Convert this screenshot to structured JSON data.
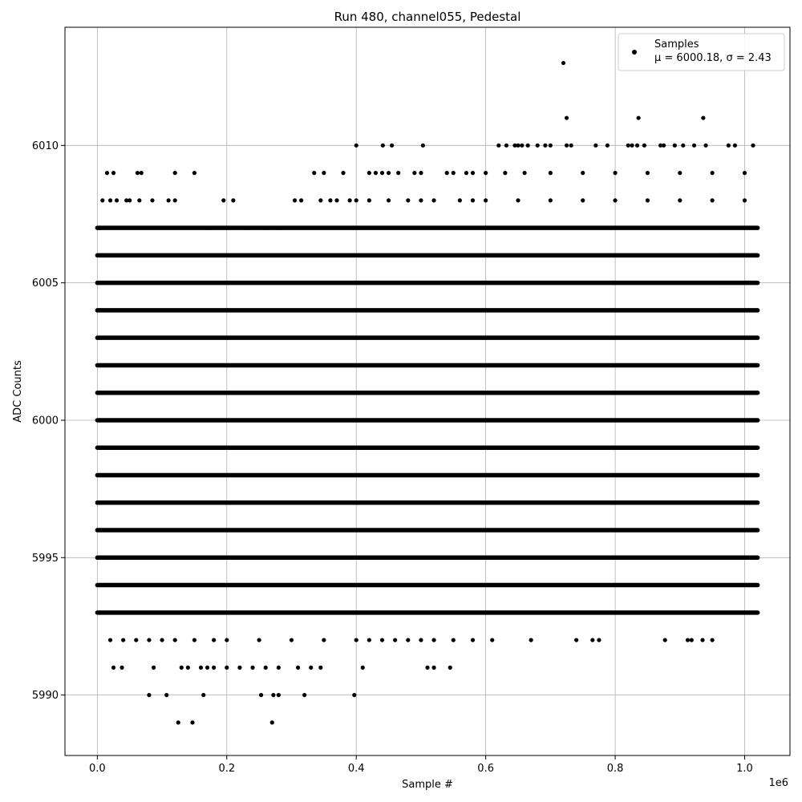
{
  "chart_data": {
    "type": "scatter",
    "title": "Run 480, channel055, Pedestal",
    "xlabel": "Sample #",
    "ylabel": "ADC Counts",
    "x_offset_label": "1e6",
    "xlim": [
      -0.05,
      1.07
    ],
    "ylim": [
      5987.8,
      6014.3
    ],
    "x_ticks": [
      0.0,
      0.2,
      0.4,
      0.6,
      0.8,
      1.0
    ],
    "x_tick_labels": [
      "0.0",
      "0.2",
      "0.4",
      "0.6",
      "0.8",
      "1.0"
    ],
    "y_ticks": [
      5990,
      5995,
      6000,
      6005,
      6010
    ],
    "y_tick_labels": [
      "5990",
      "5995",
      "6000",
      "6005",
      "6010"
    ],
    "grid": true,
    "legend_position": "top-right",
    "marker_color": "#000000",
    "series": [
      {
        "name": "Samples",
        "stats_label": "μ = 6000.18, σ = 2.43",
        "bands": [
          {
            "y": 6001,
            "x_range": [
              0.0,
              1.02
            ]
          },
          {
            "y": 6000,
            "x_range": [
              0.0,
              1.02
            ]
          },
          {
            "y": 5999,
            "x_range": [
              0.0,
              1.02
            ]
          },
          {
            "y": 6002,
            "x_range": [
              0.0,
              1.02
            ]
          },
          {
            "y": 5998,
            "x_range": [
              0.0,
              1.02
            ]
          },
          {
            "y": 6003,
            "x_range": [
              0.0,
              1.02
            ]
          },
          {
            "y": 5997,
            "x_range": [
              0.0,
              1.02
            ]
          },
          {
            "y": 6004,
            "x_range": [
              0.0,
              1.02
            ]
          },
          {
            "y": 5996,
            "x_range": [
              0.0,
              1.02
            ]
          },
          {
            "y": 6005,
            "x_range": [
              0.0,
              1.02
            ]
          },
          {
            "y": 5995,
            "x_range": [
              0.0,
              1.02
            ]
          },
          {
            "y": 6006,
            "x_range": [
              0.0,
              1.02
            ]
          },
          {
            "y": 5994,
            "x_range": [
              0.0,
              1.02
            ]
          },
          {
            "y": 6007,
            "x_range": [
              0.0,
              1.02
            ]
          },
          {
            "y": 5993,
            "x_range": [
              0.0,
              1.02
            ]
          }
        ],
        "points": [
          [
            0.72,
            6013
          ],
          [
            0.725,
            6011
          ],
          [
            0.836,
            6011
          ],
          [
            0.936,
            6011
          ],
          [
            0.4,
            6010
          ],
          [
            0.441,
            6010
          ],
          [
            0.455,
            6010
          ],
          [
            0.503,
            6010
          ],
          [
            0.62,
            6010
          ],
          [
            0.632,
            6010
          ],
          [
            0.645,
            6010
          ],
          [
            0.65,
            6010
          ],
          [
            0.656,
            6010
          ],
          [
            0.665,
            6010
          ],
          [
            0.68,
            6010
          ],
          [
            0.692,
            6010
          ],
          [
            0.7,
            6010
          ],
          [
            0.725,
            6010
          ],
          [
            0.732,
            6010
          ],
          [
            0.77,
            6010
          ],
          [
            0.788,
            6010
          ],
          [
            0.82,
            6010
          ],
          [
            0.826,
            6010
          ],
          [
            0.834,
            6010
          ],
          [
            0.845,
            6010
          ],
          [
            0.87,
            6010
          ],
          [
            0.875,
            6010
          ],
          [
            0.892,
            6010
          ],
          [
            0.905,
            6010
          ],
          [
            0.922,
            6010
          ],
          [
            0.94,
            6010
          ],
          [
            0.975,
            6010
          ],
          [
            0.985,
            6010
          ],
          [
            1.013,
            6010
          ],
          [
            0.015,
            6009
          ],
          [
            0.025,
            6009
          ],
          [
            0.062,
            6009
          ],
          [
            0.068,
            6009
          ],
          [
            0.12,
            6009
          ],
          [
            0.15,
            6009
          ],
          [
            0.335,
            6009
          ],
          [
            0.35,
            6009
          ],
          [
            0.38,
            6009
          ],
          [
            0.42,
            6009
          ],
          [
            0.43,
            6009
          ],
          [
            0.44,
            6009
          ],
          [
            0.45,
            6009
          ],
          [
            0.465,
            6009
          ],
          [
            0.49,
            6009
          ],
          [
            0.5,
            6009
          ],
          [
            0.54,
            6009
          ],
          [
            0.55,
            6009
          ],
          [
            0.57,
            6009
          ],
          [
            0.58,
            6009
          ],
          [
            0.6,
            6009
          ],
          [
            0.63,
            6009
          ],
          [
            0.66,
            6009
          ],
          [
            0.7,
            6009
          ],
          [
            0.75,
            6009
          ],
          [
            0.8,
            6009
          ],
          [
            0.85,
            6009
          ],
          [
            0.9,
            6009
          ],
          [
            0.95,
            6009
          ],
          [
            1.0,
            6009
          ],
          [
            0.008,
            6008
          ],
          [
            0.02,
            6008
          ],
          [
            0.03,
            6008
          ],
          [
            0.045,
            6008
          ],
          [
            0.05,
            6008
          ],
          [
            0.065,
            6008
          ],
          [
            0.085,
            6008
          ],
          [
            0.11,
            6008
          ],
          [
            0.12,
            6008
          ],
          [
            0.195,
            6008
          ],
          [
            0.21,
            6008
          ],
          [
            0.305,
            6008
          ],
          [
            0.315,
            6008
          ],
          [
            0.345,
            6008
          ],
          [
            0.36,
            6008
          ],
          [
            0.37,
            6008
          ],
          [
            0.39,
            6008
          ],
          [
            0.4,
            6008
          ],
          [
            0.42,
            6008
          ],
          [
            0.45,
            6008
          ],
          [
            0.48,
            6008
          ],
          [
            0.5,
            6008
          ],
          [
            0.52,
            6008
          ],
          [
            0.56,
            6008
          ],
          [
            0.58,
            6008
          ],
          [
            0.6,
            6008
          ],
          [
            0.65,
            6008
          ],
          [
            0.7,
            6008
          ],
          [
            0.75,
            6008
          ],
          [
            0.8,
            6008
          ],
          [
            0.85,
            6008
          ],
          [
            0.9,
            6008
          ],
          [
            0.95,
            6008
          ],
          [
            1.0,
            6008
          ],
          [
            0.175,
            6007
          ],
          [
            0.2,
            6007
          ],
          [
            0.23,
            6007
          ],
          [
            0.26,
            6007
          ],
          [
            0.28,
            6007
          ],
          [
            0.02,
            5992
          ],
          [
            0.04,
            5992
          ],
          [
            0.06,
            5992
          ],
          [
            0.08,
            5992
          ],
          [
            0.1,
            5992
          ],
          [
            0.12,
            5992
          ],
          [
            0.15,
            5992
          ],
          [
            0.18,
            5992
          ],
          [
            0.2,
            5992
          ],
          [
            0.25,
            5992
          ],
          [
            0.3,
            5992
          ],
          [
            0.35,
            5992
          ],
          [
            0.4,
            5992
          ],
          [
            0.42,
            5992
          ],
          [
            0.44,
            5992
          ],
          [
            0.46,
            5992
          ],
          [
            0.48,
            5992
          ],
          [
            0.5,
            5992
          ],
          [
            0.52,
            5992
          ],
          [
            0.55,
            5992
          ],
          [
            0.58,
            5992
          ],
          [
            0.61,
            5992
          ],
          [
            0.67,
            5992
          ],
          [
            0.74,
            5992
          ],
          [
            0.765,
            5992
          ],
          [
            0.775,
            5992
          ],
          [
            0.877,
            5992
          ],
          [
            0.912,
            5992
          ],
          [
            0.918,
            5992
          ],
          [
            0.935,
            5992
          ],
          [
            0.95,
            5992
          ],
          [
            0.025,
            5991
          ],
          [
            0.038,
            5991
          ],
          [
            0.087,
            5991
          ],
          [
            0.13,
            5991
          ],
          [
            0.14,
            5991
          ],
          [
            0.16,
            5991
          ],
          [
            0.17,
            5991
          ],
          [
            0.18,
            5991
          ],
          [
            0.2,
            5991
          ],
          [
            0.22,
            5991
          ],
          [
            0.24,
            5991
          ],
          [
            0.26,
            5991
          ],
          [
            0.28,
            5991
          ],
          [
            0.31,
            5991
          ],
          [
            0.33,
            5991
          ],
          [
            0.345,
            5991
          ],
          [
            0.41,
            5991
          ],
          [
            0.51,
            5991
          ],
          [
            0.52,
            5991
          ],
          [
            0.545,
            5991
          ],
          [
            0.08,
            5990
          ],
          [
            0.107,
            5990
          ],
          [
            0.164,
            5990
          ],
          [
            0.253,
            5990
          ],
          [
            0.272,
            5990
          ],
          [
            0.28,
            5990
          ],
          [
            0.32,
            5990
          ],
          [
            0.397,
            5990
          ],
          [
            0.125,
            5989
          ],
          [
            0.147,
            5989
          ],
          [
            0.27,
            5989
          ]
        ]
      }
    ]
  }
}
